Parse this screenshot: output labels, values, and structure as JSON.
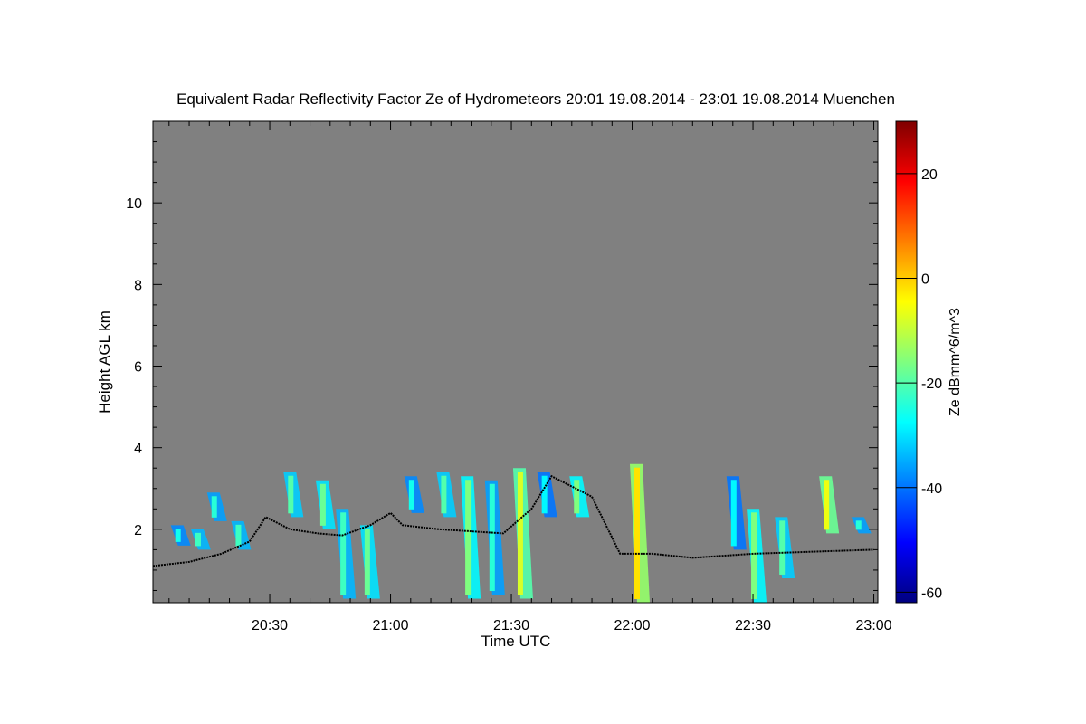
{
  "chart_data": {
    "type": "heatmap",
    "title": "Equivalent Radar Reflectivity Factor Ze of Hydrometeors   20:01 19.08.2014 - 23:01 19.08.2014 Muenchen",
    "xlabel": "Time UTC",
    "ylabel": "Height AGL km",
    "x_unit": "minutes since 20:00 UTC",
    "xlim": [
      1,
      181
    ],
    "ylim": [
      0.2,
      12
    ],
    "x_ticks": [
      {
        "value": 30,
        "label": "20:30"
      },
      {
        "value": 60,
        "label": "21:00"
      },
      {
        "value": 90,
        "label": "21:30"
      },
      {
        "value": 120,
        "label": "22:00"
      },
      {
        "value": 150,
        "label": "22:30"
      },
      {
        "value": 180,
        "label": "23:00"
      }
    ],
    "y_ticks": [
      {
        "value": 2,
        "label": "2"
      },
      {
        "value": 4,
        "label": "4"
      },
      {
        "value": 6,
        "label": "6"
      },
      {
        "value": 8,
        "label": "8"
      },
      {
        "value": 10,
        "label": "10"
      }
    ],
    "background_color": "#808080",
    "colorbar": {
      "label": "Ze dBmm^6/m^3",
      "range": [
        -62,
        30
      ],
      "ticks": [
        {
          "value": -60,
          "label": "-60"
        },
        {
          "value": -40,
          "label": "-40"
        },
        {
          "value": -20,
          "label": "-20"
        },
        {
          "value": 0,
          "label": "0"
        },
        {
          "value": 20,
          "label": "20"
        }
      ],
      "colormap": [
        "#00007f",
        "#0000ff",
        "#007fff",
        "#00ffff",
        "#7fff7f",
        "#ffff00",
        "#ff7f00",
        "#ff0000",
        "#7f0000"
      ]
    },
    "echo_cells": [
      {
        "t": 7,
        "h0": 1.6,
        "h1": 2.1,
        "ze": -38
      },
      {
        "t": 12,
        "h0": 1.5,
        "h1": 2.0,
        "ze": -34
      },
      {
        "t": 16,
        "h0": 2.2,
        "h1": 2.9,
        "ze": -36
      },
      {
        "t": 22,
        "h0": 1.5,
        "h1": 2.2,
        "ze": -34
      },
      {
        "t": 35,
        "h0": 2.3,
        "h1": 3.4,
        "ze": -32
      },
      {
        "t": 43,
        "h0": 2.0,
        "h1": 3.2,
        "ze": -30
      },
      {
        "t": 48,
        "h0": 0.3,
        "h1": 2.5,
        "ze": -34
      },
      {
        "t": 54,
        "h0": 0.3,
        "h1": 2.1,
        "ze": -30
      },
      {
        "t": 65,
        "h0": 2.4,
        "h1": 3.3,
        "ze": -38
      },
      {
        "t": 73,
        "h0": 2.3,
        "h1": 3.4,
        "ze": -32
      },
      {
        "t": 79,
        "h0": 0.3,
        "h1": 3.3,
        "ze": -28
      },
      {
        "t": 85,
        "h0": 0.4,
        "h1": 3.2,
        "ze": -36
      },
      {
        "t": 92,
        "h0": 0.3,
        "h1": 3.5,
        "ze": -20
      },
      {
        "t": 98,
        "h0": 2.3,
        "h1": 3.4,
        "ze": -40
      },
      {
        "t": 106,
        "h0": 2.3,
        "h1": 3.3,
        "ze": -28
      },
      {
        "t": 121,
        "h0": 0.2,
        "h1": 3.6,
        "ze": -14
      },
      {
        "t": 145,
        "h0": 1.5,
        "h1": 3.3,
        "ze": -40
      },
      {
        "t": 150,
        "h0": 0.2,
        "h1": 2.5,
        "ze": -28
      },
      {
        "t": 157,
        "h0": 0.8,
        "h1": 2.3,
        "ze": -32
      },
      {
        "t": 168,
        "h0": 1.9,
        "h1": 3.3,
        "ze": -18
      },
      {
        "t": 176,
        "h0": 1.9,
        "h1": 2.3,
        "ze": -36
      }
    ],
    "cloud_base_line": [
      {
        "t": 1,
        "h": 1.1
      },
      {
        "t": 10,
        "h": 1.2
      },
      {
        "t": 18,
        "h": 1.4
      },
      {
        "t": 25,
        "h": 1.7
      },
      {
        "t": 29,
        "h": 2.3
      },
      {
        "t": 35,
        "h": 2.0
      },
      {
        "t": 42,
        "h": 1.9
      },
      {
        "t": 48,
        "h": 1.85
      },
      {
        "t": 55,
        "h": 2.1
      },
      {
        "t": 60,
        "h": 2.4
      },
      {
        "t": 63,
        "h": 2.1
      },
      {
        "t": 72,
        "h": 2.0
      },
      {
        "t": 80,
        "h": 1.95
      },
      {
        "t": 88,
        "h": 1.9
      },
      {
        "t": 95,
        "h": 2.5
      },
      {
        "t": 100,
        "h": 3.3
      },
      {
        "t": 110,
        "h": 2.8
      },
      {
        "t": 117,
        "h": 1.4
      },
      {
        "t": 125,
        "h": 1.4
      },
      {
        "t": 135,
        "h": 1.3
      },
      {
        "t": 150,
        "h": 1.4
      },
      {
        "t": 165,
        "h": 1.45
      },
      {
        "t": 180,
        "h": 1.5
      }
    ]
  }
}
